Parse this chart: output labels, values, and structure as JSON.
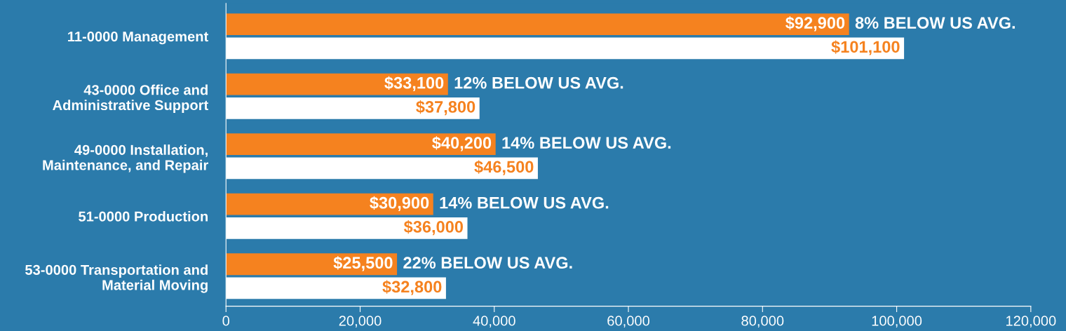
{
  "chart_data": {
    "type": "bar",
    "orientation": "horizontal",
    "categories": [
      "11-0000 Management",
      "43-0000 Office and\nAdministrative Support",
      "49-0000 Installation,\nMaintenance, and Repair",
      "51-0000 Production",
      "53-0000 Transportation and\nMaterial Moving"
    ],
    "series": [
      {
        "color": "#f5821f",
        "values": [
          92900,
          33100,
          40200,
          30900,
          25500
        ],
        "value_labels": [
          "$92,900",
          "$33,100",
          "$40,200",
          "$30,900",
          "$25,500"
        ]
      },
      {
        "color": "#ffffff",
        "values": [
          101100,
          37800,
          46500,
          36000,
          32800
        ],
        "value_labels": [
          "$101,100",
          "$37,800",
          "$46,500",
          "$36,000",
          "$32,800"
        ]
      }
    ],
    "xlim": [
      0,
      120000
    ],
    "xticks": [
      0,
      {
        "value": 20000,
        "label": "20,000"
      },
      {
        "value": 40000,
        "label": "40,000"
      },
      {
        "value": 60000,
        "label": "60,000"
      },
      {
        "value": 80000,
        "label": "80,000"
      },
      {
        "value": 100000,
        "label": "100,000"
      },
      {
        "value": 120000,
        "label": "120,000"
      }
    ],
    "grid": false,
    "legend": false,
    "annotations": [
      {
        "text": "8% BELOW US AVG.",
        "x": 92900,
        "y": "11-0000 Management"
      },
      {
        "text": "12% BELOW US AVG.",
        "x": 33100,
        "y": "43-0000 Office and\nAdministrative Support"
      },
      {
        "text": "14% BELOW US AVG.",
        "x": 40200,
        "y": "49-0000 Installation,\nMaintenance, and Repair"
      },
      {
        "text": "14% BELOW US AVG.",
        "x": 30900,
        "y": "51-0000 Production"
      },
      {
        "text": "22% BELOW US AVG.",
        "x": 25500,
        "y": "53-0000 Transportation and\nMaterial Moving"
      }
    ]
  }
}
